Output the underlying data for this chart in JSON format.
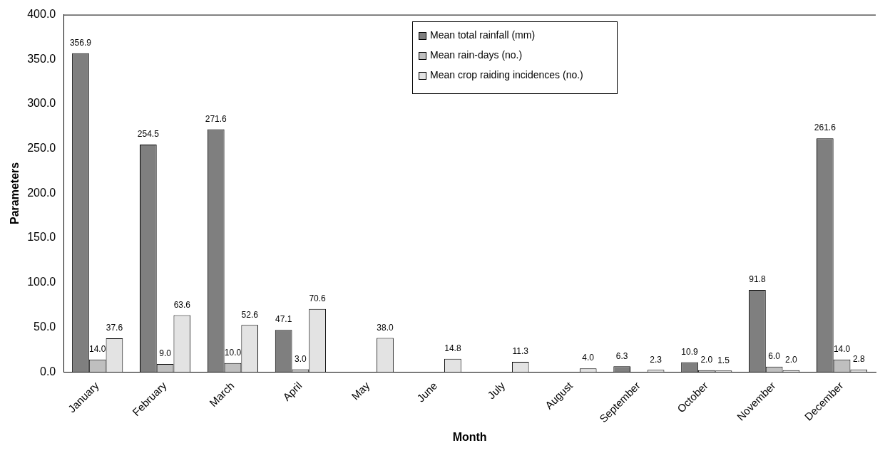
{
  "chart_data": {
    "type": "bar",
    "xlabel": "Month",
    "ylabel": "Parameters",
    "categories": [
      "January",
      "February",
      "March",
      "April",
      "May",
      "June",
      "July",
      "August",
      "September",
      "October",
      "November",
      "December"
    ],
    "series": [
      {
        "name": "Mean total rainfall (mm)",
        "color": "#7f7f7f",
        "values": [
          356.9,
          254.5,
          271.6,
          47.1,
          null,
          null,
          null,
          null,
          6.3,
          10.9,
          91.8,
          261.6
        ],
        "value_labels": [
          "356.9",
          "254.5",
          "271.6",
          "47.1",
          null,
          null,
          null,
          null,
          "6.3",
          "10.9",
          "91.8",
          "261.6"
        ]
      },
      {
        "name": "Mean rain-days (no.)",
        "color": "#bfbfbf",
        "values": [
          14.0,
          9.0,
          10.0,
          3.0,
          null,
          null,
          null,
          null,
          null,
          2.0,
          6.0,
          14.0
        ],
        "value_labels": [
          "14.0",
          "9.0",
          "10.0",
          "3.0",
          null,
          null,
          null,
          null,
          null,
          "2.0",
          "6.0",
          "14.0"
        ]
      },
      {
        "name": "Mean crop raiding incidences (no.)",
        "color": "#e3e3e3",
        "values": [
          37.6,
          63.6,
          52.6,
          70.6,
          38.0,
          14.8,
          11.3,
          4.0,
          2.3,
          1.5,
          2.0,
          2.8
        ],
        "value_labels": [
          "37.6",
          "63.6",
          "52.6",
          "70.6",
          "38.0",
          "14.8",
          "11.3",
          "4.0",
          "2.3",
          "1.5",
          "2.0",
          "2.8"
        ]
      }
    ],
    "ylim": [
      0,
      400
    ],
    "yticks": [
      {
        "value": 0,
        "label": "0.0"
      },
      {
        "value": 50,
        "label": "50.0"
      },
      {
        "value": 100,
        "label": "100.0"
      },
      {
        "value": 150,
        "label": "150.0"
      },
      {
        "value": 200,
        "label": "200.0"
      },
      {
        "value": 250,
        "label": "250.0"
      },
      {
        "value": 300,
        "label": "300.0"
      },
      {
        "value": 350,
        "label": "350.0"
      },
      {
        "value": 400,
        "label": "400.0"
      }
    ],
    "grid": false,
    "legend": "top"
  }
}
